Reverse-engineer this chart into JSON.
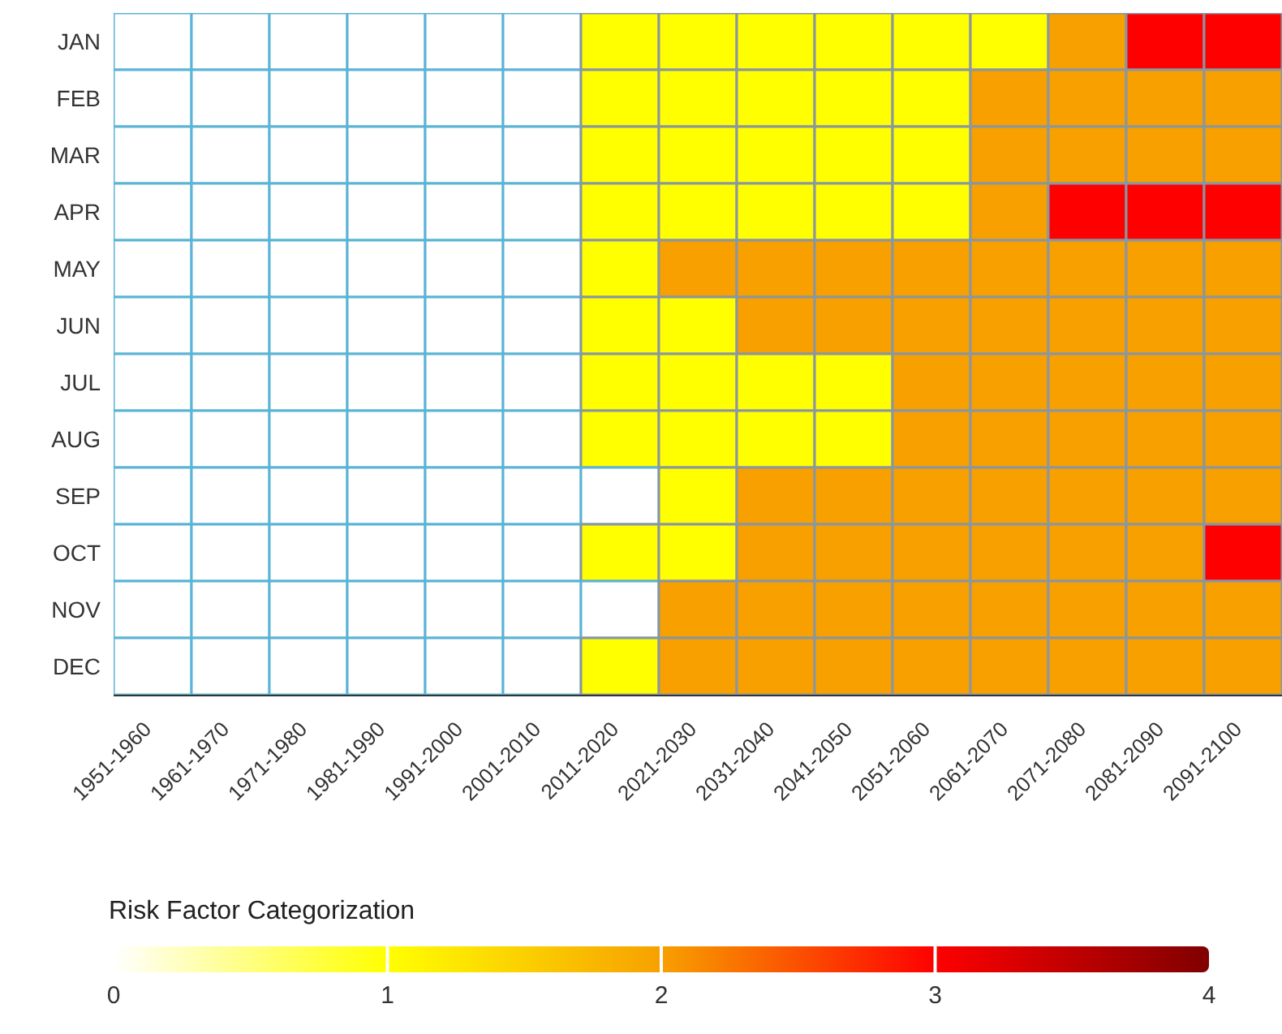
{
  "chart_data": {
    "type": "heatmap",
    "clabel": "Risk Factor Categorization",
    "categories": [
      "1951-1960",
      "1961-1970",
      "1971-1980",
      "1981-1990",
      "1991-2000",
      "2001-2010",
      "2011-2020",
      "2021-2030",
      "2031-2040",
      "2041-2050",
      "2051-2060",
      "2061-2070",
      "2071-2080",
      "2081-2090",
      "2091-2100"
    ],
    "y_categories": [
      "JAN",
      "FEB",
      "MAR",
      "APR",
      "MAY",
      "JUN",
      "JUL",
      "AUG",
      "SEP",
      "OCT",
      "NOV",
      "DEC"
    ],
    "cells": [
      [
        0,
        0,
        0,
        0,
        0,
        0,
        1,
        1,
        1,
        1,
        1,
        1,
        2,
        3,
        3
      ],
      [
        0,
        0,
        0,
        0,
        0,
        0,
        1,
        1,
        1,
        1,
        1,
        2,
        2,
        2,
        2
      ],
      [
        0,
        0,
        0,
        0,
        0,
        0,
        1,
        1,
        1,
        1,
        1,
        2,
        2,
        2,
        2
      ],
      [
        0,
        0,
        0,
        0,
        0,
        0,
        1,
        1,
        1,
        1,
        1,
        2,
        3,
        3,
        3
      ],
      [
        0,
        0,
        0,
        0,
        0,
        0,
        1,
        2,
        2,
        2,
        2,
        2,
        2,
        2,
        2
      ],
      [
        0,
        0,
        0,
        0,
        0,
        0,
        1,
        1,
        2,
        2,
        2,
        2,
        2,
        2,
        2
      ],
      [
        0,
        0,
        0,
        0,
        0,
        0,
        1,
        1,
        1,
        1,
        2,
        2,
        2,
        2,
        2
      ],
      [
        0,
        0,
        0,
        0,
        0,
        0,
        1,
        1,
        1,
        1,
        2,
        2,
        2,
        2,
        2
      ],
      [
        0,
        0,
        0,
        0,
        0,
        0,
        0,
        1,
        2,
        2,
        2,
        2,
        2,
        2,
        2
      ],
      [
        0,
        0,
        0,
        0,
        0,
        0,
        1,
        1,
        2,
        2,
        2,
        2,
        2,
        2,
        3
      ],
      [
        0,
        0,
        0,
        0,
        0,
        0,
        0,
        2,
        2,
        2,
        2,
        2,
        2,
        2,
        2
      ],
      [
        0,
        0,
        0,
        0,
        0,
        0,
        1,
        2,
        2,
        2,
        2,
        2,
        2,
        2,
        2
      ]
    ],
    "clim": [
      0,
      4
    ],
    "cticks": [
      0,
      1,
      2,
      3,
      4
    ]
  }
}
